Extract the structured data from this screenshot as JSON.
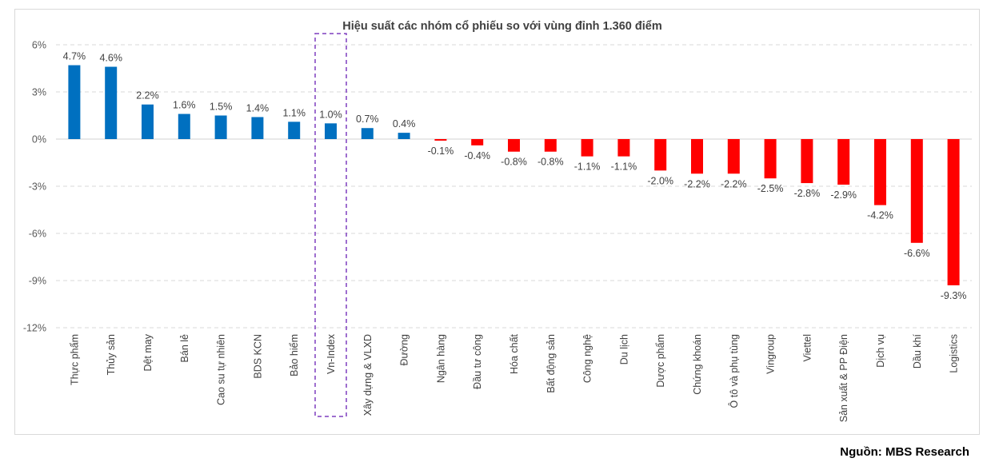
{
  "chart_data": {
    "type": "bar",
    "title": "Hiệu suất các nhóm cổ phiếu so với vùng đỉnh 1.360 điểm",
    "xlabel": "",
    "ylabel": "",
    "ylim": [
      -12,
      6
    ],
    "yticks": [
      6,
      3,
      0,
      -3,
      -6,
      -9,
      -12
    ],
    "ytick_labels": [
      "6%",
      "3%",
      "0%",
      "-3%",
      "-6%",
      "-9%",
      "-12%"
    ],
    "grid": true,
    "legend": "none",
    "categories": [
      "Thực phẩm",
      "Thủy sản",
      "Dệt may",
      "Bán lẻ",
      "Cao su tự nhiên",
      "BDS KCN",
      "Bảo hiểm",
      "Vn-Index",
      "Xây dựng & VLXD",
      "Đường",
      "Ngân hàng",
      "Đầu tư công",
      "Hóa chất",
      "Bất động sản",
      "Công nghệ",
      "Du lịch",
      "Dược phẩm",
      "Chứng khoán",
      "Ô tô và phụ tùng",
      "Vingroup",
      "Viettel",
      "Sản xuất & PP Điện",
      "Dịch vụ",
      "Dầu khí",
      "Logistics"
    ],
    "values": [
      4.7,
      4.6,
      2.2,
      1.6,
      1.5,
      1.4,
      1.1,
      1.0,
      0.7,
      0.4,
      -0.1,
      -0.4,
      -0.8,
      -0.8,
      -1.1,
      -1.1,
      -2.0,
      -2.2,
      -2.2,
      -2.5,
      -2.8,
      -2.9,
      -4.2,
      -6.6,
      -9.3
    ],
    "data_labels": [
      "4.7%",
      "4.6%",
      "2.2%",
      "1.6%",
      "1.5%",
      "1.4%",
      "1.1%",
      "1.0%",
      "0.7%",
      "0.4%",
      "-0.1%",
      "-0.4%",
      "-0.8%",
      "-0.8%",
      "-1.1%",
      "-1.1%",
      "-2.0%",
      "-2.2%",
      "-2.2%",
      "-2.5%",
      "-2.8%",
      "-2.9%",
      "-4.2%",
      "-6.6%",
      "-9.3%"
    ],
    "highlighted_category": "Vn-Index",
    "colors": {
      "positive": "#0070C0",
      "negative": "#FF0000",
      "highlight_box": "#7F3FBF",
      "grid": "#d9d9d9"
    }
  },
  "footer": {
    "source": "Nguồn: MBS Research"
  }
}
